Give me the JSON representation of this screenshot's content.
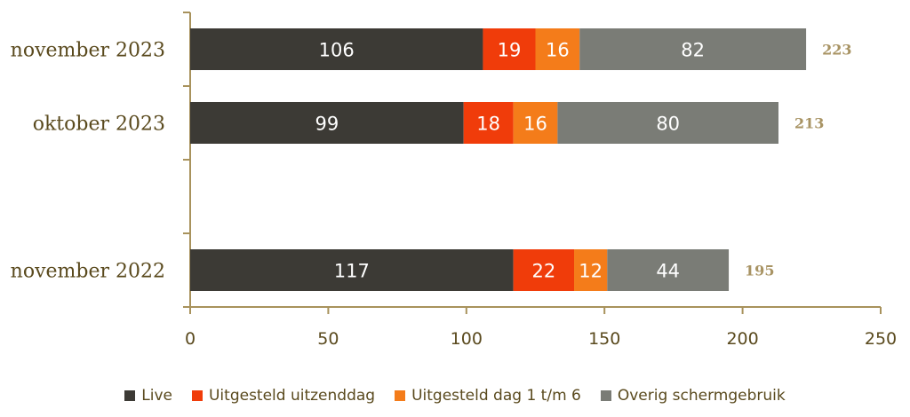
{
  "chart_data": {
    "type": "bar",
    "orientation": "horizontal",
    "stacked": true,
    "categories": [
      "november 2023",
      "oktober 2023",
      "",
      "november 2022"
    ],
    "series": [
      {
        "name": "Live",
        "color": "#3c3a35",
        "values": [
          106,
          99,
          null,
          117
        ]
      },
      {
        "name": "Uitgesteld uitzenddag",
        "color": "#f03c0a",
        "values": [
          19,
          18,
          null,
          22
        ]
      },
      {
        "name": "Uitgesteld dag 1 t/m 6",
        "color": "#f47c1a",
        "values": [
          16,
          16,
          null,
          12
        ]
      },
      {
        "name": "Overig schermgebruik",
        "color": "#7a7c76",
        "values": [
          82,
          80,
          null,
          44
        ]
      }
    ],
    "totals": [
      223,
      213,
      null,
      195
    ],
    "xlim": [
      0,
      250
    ],
    "xticks": [
      0,
      50,
      100,
      150,
      200,
      250
    ],
    "grid": false,
    "legend_position": "bottom"
  }
}
